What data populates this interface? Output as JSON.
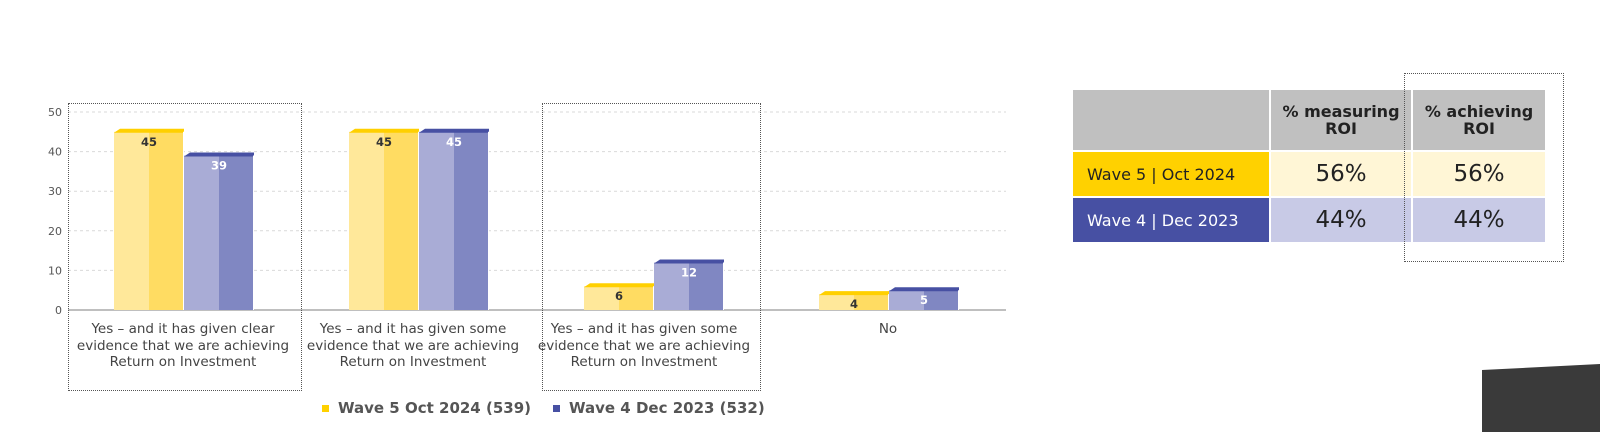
{
  "chart_data": {
    "type": "bar",
    "categories": [
      "Yes – and it has given clear evidence that we are achieving Return on Investment",
      "Yes – and it has given some evidence that we are achieving Return on Investment",
      "Yes – and it has given some evidence that we are achieving Return on Investment",
      "No"
    ],
    "series": [
      {
        "name": "Wave 5 Oct 2024 (539)",
        "values": [
          45,
          45,
          6,
          4
        ],
        "color": "#ffd633"
      },
      {
        "name": "Wave 4 Dec 2023 (532)",
        "values": [
          39,
          45,
          12,
          5
        ],
        "color": "#7f85c2"
      }
    ],
    "ylim": [
      0,
      50
    ],
    "yticks": [
      0,
      10,
      20,
      30,
      40,
      50
    ],
    "grid": true,
    "legend_position": "bottom"
  },
  "table": {
    "headers": [
      "% measuring ROI",
      "% achieving ROI"
    ],
    "rows": [
      {
        "label": "Wave 5 | Oct 2024",
        "measuring": "56%",
        "achieving": "56%",
        "label_color": "#ffd100",
        "cell_color": "#fff6d6"
      },
      {
        "label": "Wave 4 | Dec 2023",
        "measuring": "44%",
        "achieving": "44%",
        "label_color": "#4750a3",
        "cell_color": "#c8cae6"
      }
    ]
  }
}
